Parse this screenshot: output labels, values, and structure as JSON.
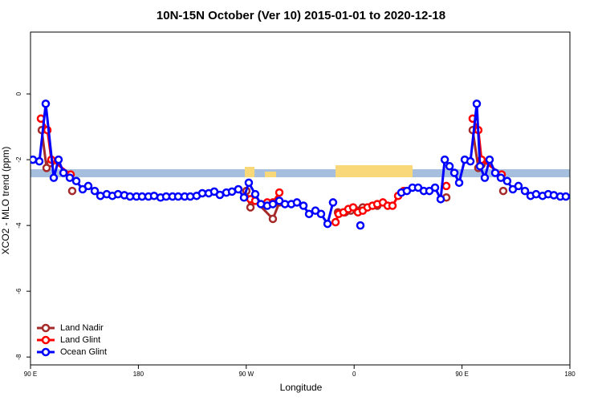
{
  "chart_data": {
    "type": "line",
    "title": "10N-15N October (Ver 10)   2015-01-01 to 2020-12-18",
    "x_label": "Longitude",
    "y_label": "XCO2 - MLO trend (ppm)",
    "xlim": [
      90,
      540
    ],
    "xticks": [
      {
        "value": 90,
        "label": "90 E"
      },
      {
        "value": 180,
        "label": "180"
      },
      {
        "value": 270,
        "label": "90 W"
      },
      {
        "value": 360,
        "label": "0"
      },
      {
        "value": 450,
        "label": "90 E"
      },
      {
        "value": 540,
        "label": "180"
      }
    ],
    "ylim": [
      -8.24,
      1.88
    ],
    "yticks": [
      0,
      -2,
      -4,
      -6,
      -8
    ],
    "legend": "bottom-left",
    "series": [
      {
        "name": "Land Nadir",
        "color": "#a52a2a",
        "x": [
          99.4,
          103.4,
          106.7,
          null,
          124.8,
          null,
          270.1,
          273.5,
          277.5,
          292.2,
          297.6,
          null,
          346.5,
          352.5,
          357.2,
          363.2,
          367.2,
          379.3,
          null,
          436.9,
          null,
          458.9,
          463.6,
          466.3,
          null,
          484.4
        ],
        "values": [
          -1.1,
          -2.25,
          -2.1,
          null,
          -2.95,
          null,
          -2.95,
          -3.45,
          -3.25,
          -3.8,
          -3.3,
          null,
          -3.6,
          -3.6,
          -3.55,
          -3.55,
          -3.45,
          -3.4,
          null,
          -3.15,
          null,
          -1.1,
          -2.25,
          -2.15,
          null,
          -2.95
        ]
      },
      {
        "name": "Land Glint",
        "color": "#ff0000",
        "x": [
          98.7,
          104.1,
          107.4,
          123.5,
          null,
          273.5,
          277.5,
          287.5,
          292.2,
          297.6,
          null,
          344.5,
          347.1,
          351.1,
          355.2,
          359.2,
          363.2,
          367.2,
          371.2,
          375.3,
          379.3,
          384.0,
          388.0,
          392.0,
          396.7,
          401.4,
          null,
          436.9,
          null,
          458.9,
          463.6,
          466.3,
          483.1
        ],
        "values": [
          -0.75,
          -1.1,
          -2.0,
          -2.45,
          null,
          -3.2,
          -3.25,
          -3.3,
          -3.3,
          -3.0,
          null,
          -3.9,
          -3.65,
          -3.6,
          -3.5,
          -3.45,
          -3.6,
          -3.55,
          -3.45,
          -3.4,
          -3.35,
          -3.3,
          -3.4,
          -3.4,
          -3.1,
          -2.95,
          null,
          -2.8,
          null,
          -0.75,
          -1.1,
          -2.0,
          -2.45
        ]
      },
      {
        "name": "Ocean Glint",
        "color": "#0000ff",
        "x": [
          92.0,
          97.4,
          102.7,
          109.4,
          113.4,
          117.5,
          122.8,
          128.2,
          133.5,
          138.2,
          143.6,
          148.3,
          153.6,
          158.3,
          163.0,
          168.3,
          173.0,
          178.4,
          183.1,
          188.4,
          193.1,
          198.5,
          203.2,
          208.5,
          213.2,
          218.6,
          223.3,
          228.6,
          233.3,
          238.7,
          243.3,
          248.0,
          253.4,
          258.1,
          263.4,
          268.1,
          272.1,
          277.5,
          282.2,
          287.5,
          292.2,
          297.6,
          302.3,
          307.6,
          312.3,
          317.7,
          322.4,
          327.7,
          332.4,
          337.8,
          342.4,
          null,
          365.2,
          null,
          399.4,
          404.0,
          408.7,
          413.4,
          418.1,
          422.8,
          427.5,
          432.2,
          435.6,
          439.6,
          443.6,
          447.6,
          452.3,
          457.0,
          462.3,
          465.0,
          469.0,
          473.0,
          477.7,
          482.4,
          487.7,
          492.4,
          497.1,
          502.5,
          507.2,
          511.8,
          517.2,
          521.9,
          526.6,
          532.0,
          536.6
        ],
        "values": [
          -2.0,
          -2.05,
          -0.3,
          -2.55,
          -2.0,
          -2.4,
          -2.55,
          -2.65,
          -2.9,
          -2.8,
          -2.95,
          -3.1,
          -3.05,
          -3.1,
          -3.05,
          -3.08,
          -3.12,
          -3.12,
          -3.12,
          -3.12,
          -3.1,
          -3.15,
          -3.12,
          -3.12,
          -3.12,
          -3.12,
          -3.12,
          -3.1,
          -3.02,
          -3.02,
          -2.97,
          -3.07,
          -3.0,
          -2.97,
          -2.9,
          -3.15,
          -2.7,
          -3.05,
          -3.35,
          -3.4,
          -3.35,
          -3.25,
          -3.35,
          -3.35,
          -3.3,
          -3.4,
          -3.65,
          -3.55,
          -3.65,
          -3.95,
          -3.3,
          null,
          -4.0,
          null,
          -3.0,
          -2.95,
          -2.85,
          -2.85,
          -2.95,
          -2.95,
          -2.85,
          -3.2,
          -2.0,
          -2.2,
          -2.4,
          -2.7,
          -2.0,
          -2.05,
          -0.3,
          -2.2,
          -2.55,
          -2.0,
          -2.4,
          -2.55,
          -2.65,
          -2.9,
          -2.8,
          -2.95,
          -3.1,
          -3.05,
          -3.1,
          -3.05,
          -3.08,
          -3.12,
          -3.12
        ]
      }
    ]
  }
}
